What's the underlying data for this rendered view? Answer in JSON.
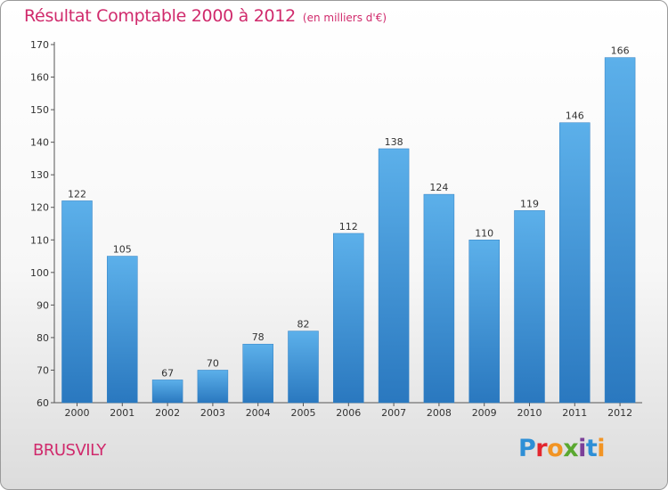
{
  "chart_data": {
    "type": "bar",
    "title": "Résultat Comptable 2000 à 2012",
    "unit": "(en milliers d'€)",
    "categories": [
      "2000",
      "2001",
      "2002",
      "2003",
      "2004",
      "2005",
      "2006",
      "2007",
      "2008",
      "2009",
      "2010",
      "2011",
      "2012"
    ],
    "values": [
      122,
      105,
      67,
      70,
      78,
      82,
      112,
      138,
      124,
      110,
      119,
      146,
      166
    ],
    "ylim": [
      60,
      170
    ],
    "yticks": [
      60,
      70,
      80,
      90,
      100,
      110,
      120,
      130,
      140,
      150,
      160,
      170
    ],
    "xlabel": "",
    "ylabel": "",
    "grid": false,
    "bar_color": "#3d8fd4"
  },
  "location": "BRUSVILY",
  "brand": {
    "letters": [
      {
        "char": "P",
        "color": "#2e8fd6"
      },
      {
        "char": "r",
        "color": "#e3262e"
      },
      {
        "char": "o",
        "color": "#f29423"
      },
      {
        "char": "x",
        "color": "#5aa830"
      },
      {
        "char": "i",
        "color": "#7b3f98"
      },
      {
        "char": "t",
        "color": "#2e8fd6"
      },
      {
        "char": "i",
        "color": "#f29423"
      }
    ]
  }
}
